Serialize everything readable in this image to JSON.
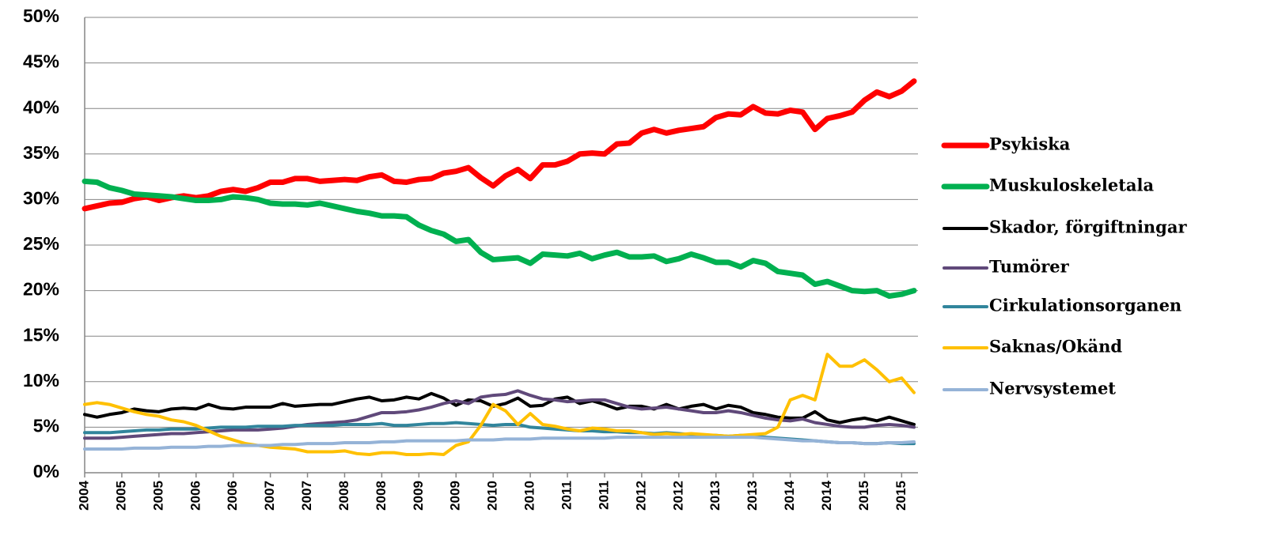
{
  "chart_data": {
    "type": "line",
    "categories": [
      "2004",
      null,
      null,
      "2005",
      null,
      null,
      "2005",
      null,
      null,
      "2006",
      null,
      null,
      "2006",
      null,
      null,
      "2007",
      null,
      null,
      "2007",
      null,
      null,
      "2008",
      null,
      null,
      "2008",
      null,
      null,
      "2009",
      null,
      null,
      "2009",
      null,
      null,
      "2010",
      null,
      null,
      "2010",
      null,
      null,
      "2011",
      null,
      null,
      "2011",
      null,
      null,
      "2012",
      null,
      null,
      "2012",
      null,
      null,
      "2013",
      null,
      null,
      "2013",
      null,
      null,
      "2014",
      null,
      null,
      "2014",
      null,
      null,
      "2015",
      null,
      null,
      "2015",
      null
    ],
    "ylim": [
      0,
      50
    ],
    "yticks": [
      {
        "value": 0,
        "label": "0%"
      },
      {
        "value": 5,
        "label": "5%"
      },
      {
        "value": 10,
        "label": "10%"
      },
      {
        "value": 15,
        "label": "15%"
      },
      {
        "value": 20,
        "label": "20%"
      },
      {
        "value": 25,
        "label": "25%"
      },
      {
        "value": 30,
        "label": "30%"
      },
      {
        "value": 35,
        "label": "35%"
      },
      {
        "value": 40,
        "label": "40%"
      },
      {
        "value": 45,
        "label": "45%"
      },
      {
        "value": 50,
        "label": "50%"
      }
    ],
    "grid": true,
    "legend": "right",
    "series": [
      {
        "name": "Psykiska",
        "color": "#ff0000",
        "width": 7,
        "values": [
          29.0,
          29.3,
          29.6,
          29.7,
          30.1,
          30.3,
          29.9,
          30.2,
          30.4,
          30.2,
          30.4,
          30.9,
          31.1,
          30.9,
          31.3,
          31.9,
          31.9,
          32.3,
          32.3,
          32.0,
          32.1,
          32.2,
          32.1,
          32.5,
          32.7,
          32.0,
          31.9,
          32.2,
          32.3,
          32.9,
          33.1,
          33.5,
          32.4,
          31.5,
          32.6,
          33.3,
          32.3,
          33.8,
          33.8,
          34.2,
          35.0,
          35.1,
          35.0,
          36.1,
          36.2,
          37.3,
          37.7,
          37.3,
          37.6,
          37.8,
          38.0,
          39.0,
          39.4,
          39.3,
          40.2,
          39.5,
          39.4,
          39.8,
          39.6,
          37.7,
          38.9,
          39.2,
          39.6,
          40.9,
          41.8,
          41.3,
          41.9,
          43.0
        ]
      },
      {
        "name": "Muskuloskeletala",
        "color": "#00b050",
        "width": 7,
        "values": [
          32.0,
          31.9,
          31.3,
          31.0,
          30.6,
          30.5,
          30.4,
          30.3,
          30.1,
          29.9,
          29.9,
          30.0,
          30.3,
          30.2,
          30.0,
          29.6,
          29.5,
          29.5,
          29.4,
          29.6,
          29.3,
          29.0,
          28.7,
          28.5,
          28.2,
          28.2,
          28.1,
          27.2,
          26.6,
          26.2,
          25.4,
          25.6,
          24.2,
          23.4,
          23.5,
          23.6,
          23.0,
          24.0,
          23.9,
          23.8,
          24.1,
          23.5,
          23.9,
          24.2,
          23.7,
          23.7,
          23.8,
          23.2,
          23.5,
          24.0,
          23.6,
          23.1,
          23.1,
          22.6,
          23.3,
          23.0,
          22.1,
          21.9,
          21.7,
          20.7,
          21.0,
          20.5,
          20.0,
          19.9,
          20.0,
          19.4,
          19.6,
          20.0
        ]
      },
      {
        "name": "Skador, förgiftningar",
        "color": "#000000",
        "width": 4,
        "values": [
          6.4,
          6.1,
          6.4,
          6.6,
          7.0,
          6.8,
          6.7,
          7.0,
          7.1,
          7.0,
          7.5,
          7.1,
          7.0,
          7.2,
          7.2,
          7.2,
          7.6,
          7.3,
          7.4,
          7.5,
          7.5,
          7.8,
          8.1,
          8.3,
          7.9,
          8.0,
          8.3,
          8.1,
          8.7,
          8.2,
          7.4,
          8.0,
          7.9,
          7.3,
          7.6,
          8.2,
          7.3,
          7.4,
          8.1,
          8.3,
          7.6,
          7.9,
          7.5,
          7.0,
          7.3,
          7.3,
          7.0,
          7.5,
          7.0,
          7.3,
          7.5,
          7.0,
          7.4,
          7.2,
          6.6,
          6.4,
          6.1,
          6.0,
          6.0,
          6.7,
          5.8,
          5.5,
          5.8,
          6.0,
          5.7,
          6.1,
          5.7,
          5.3
        ]
      },
      {
        "name": "Tumörer",
        "color": "#60497a",
        "width": 4,
        "values": [
          3.8,
          3.8,
          3.8,
          3.9,
          4.0,
          4.1,
          4.2,
          4.3,
          4.3,
          4.4,
          4.5,
          4.6,
          4.7,
          4.7,
          4.7,
          4.8,
          4.9,
          5.1,
          5.3,
          5.4,
          5.5,
          5.6,
          5.8,
          6.2,
          6.6,
          6.6,
          6.7,
          6.9,
          7.2,
          7.6,
          7.9,
          7.6,
          8.3,
          8.5,
          8.6,
          9.0,
          8.5,
          8.1,
          8.0,
          7.8,
          7.9,
          8.0,
          8.0,
          7.6,
          7.2,
          7.0,
          7.1,
          7.2,
          7.0,
          6.8,
          6.6,
          6.6,
          6.8,
          6.6,
          6.3,
          6.0,
          5.8,
          5.7,
          5.9,
          5.5,
          5.3,
          5.1,
          5.0,
          5.0,
          5.2,
          5.3,
          5.2,
          5.0
        ]
      },
      {
        "name": "Cirkulationsorganen",
        "color": "#31859c",
        "width": 4,
        "values": [
          4.4,
          4.4,
          4.4,
          4.5,
          4.6,
          4.7,
          4.7,
          4.8,
          4.8,
          4.8,
          4.9,
          5.0,
          5.0,
          5.0,
          5.1,
          5.1,
          5.1,
          5.2,
          5.2,
          5.2,
          5.2,
          5.3,
          5.3,
          5.3,
          5.4,
          5.2,
          5.2,
          5.3,
          5.4,
          5.4,
          5.5,
          5.4,
          5.3,
          5.2,
          5.3,
          5.3,
          5.0,
          4.9,
          4.8,
          4.7,
          4.6,
          4.6,
          4.5,
          4.5,
          4.4,
          4.4,
          4.3,
          4.4,
          4.3,
          4.2,
          4.1,
          4.1,
          4.0,
          4.1,
          4.0,
          3.9,
          3.8,
          3.7,
          3.6,
          3.5,
          3.4,
          3.3,
          3.3,
          3.2,
          3.2,
          3.3,
          3.2,
          3.2
        ]
      },
      {
        "name": "Saknas/Okänd",
        "color": "#ffc000",
        "width": 4,
        "values": [
          7.5,
          7.7,
          7.5,
          7.1,
          6.7,
          6.4,
          6.2,
          5.8,
          5.6,
          5.2,
          4.6,
          4.0,
          3.6,
          3.2,
          3.0,
          2.8,
          2.7,
          2.6,
          2.3,
          2.3,
          2.3,
          2.4,
          2.1,
          2.0,
          2.2,
          2.2,
          2.0,
          2.0,
          2.1,
          2.0,
          3.0,
          3.4,
          5.2,
          7.5,
          6.8,
          5.3,
          6.5,
          5.3,
          5.1,
          4.8,
          4.6,
          4.9,
          4.8,
          4.6,
          4.6,
          4.4,
          4.2,
          4.3,
          4.2,
          4.3,
          4.2,
          4.1,
          4.0,
          4.1,
          4.2,
          4.3,
          5.0,
          8.0,
          8.5,
          8.0,
          13.0,
          11.7,
          11.7,
          12.4,
          11.3,
          10.0,
          10.4,
          8.8
        ]
      },
      {
        "name": "Nervsystemet",
        "color": "#95b3d7",
        "width": 4,
        "values": [
          2.6,
          2.6,
          2.6,
          2.6,
          2.7,
          2.7,
          2.7,
          2.8,
          2.8,
          2.8,
          2.9,
          2.9,
          3.0,
          3.0,
          3.0,
          3.0,
          3.1,
          3.1,
          3.2,
          3.2,
          3.2,
          3.3,
          3.3,
          3.3,
          3.4,
          3.4,
          3.5,
          3.5,
          3.5,
          3.5,
          3.5,
          3.6,
          3.6,
          3.6,
          3.7,
          3.7,
          3.7,
          3.8,
          3.8,
          3.8,
          3.8,
          3.8,
          3.8,
          3.9,
          3.9,
          3.9,
          3.9,
          3.9,
          3.9,
          3.9,
          3.9,
          3.9,
          3.9,
          3.9,
          3.9,
          3.8,
          3.7,
          3.6,
          3.5,
          3.5,
          3.4,
          3.3,
          3.3,
          3.2,
          3.2,
          3.3,
          3.3,
          3.4
        ]
      }
    ]
  }
}
